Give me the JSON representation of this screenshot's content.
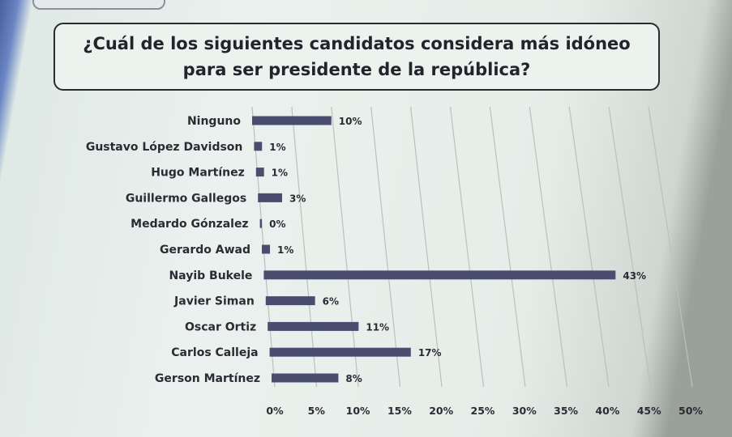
{
  "question": "¿Cuál de los siguientes candidatos considera más idóneo para ser presidente de la república?",
  "colors": {
    "bar": "#4a4e6e",
    "grid": "#b9c1be",
    "text": "#2b2b33"
  },
  "chart_data": {
    "type": "bar",
    "orientation": "horizontal",
    "title": "¿Cuál de los siguientes candidatos considera más idóneo para ser presidente de la república?",
    "categories": [
      "Ninguno",
      "Gustavo López Davidson",
      "Hugo Martínez",
      "Guillermo Gallegos",
      "Medardo Gónzalez",
      "Gerardo Awad",
      "Nayib Bukele",
      "Javier Siman",
      "Oscar Ortiz",
      "Carlos Calleja",
      "Gerson Martínez"
    ],
    "values": [
      10,
      1,
      1,
      3,
      0,
      1,
      43,
      6,
      11,
      17,
      8
    ],
    "value_labels": [
      "10%",
      "1%",
      "1%",
      "3%",
      "0%",
      "1%",
      "43%",
      "6%",
      "11%",
      "17%",
      "8%"
    ],
    "xlim": [
      0,
      50
    ],
    "xticks": [
      "0%",
      "5%",
      "10%",
      "15%",
      "20%",
      "25%",
      "30%",
      "35%",
      "40%",
      "45%",
      "50%"
    ],
    "xlabel": "",
    "ylabel": "",
    "grid": true,
    "legend": "none"
  }
}
